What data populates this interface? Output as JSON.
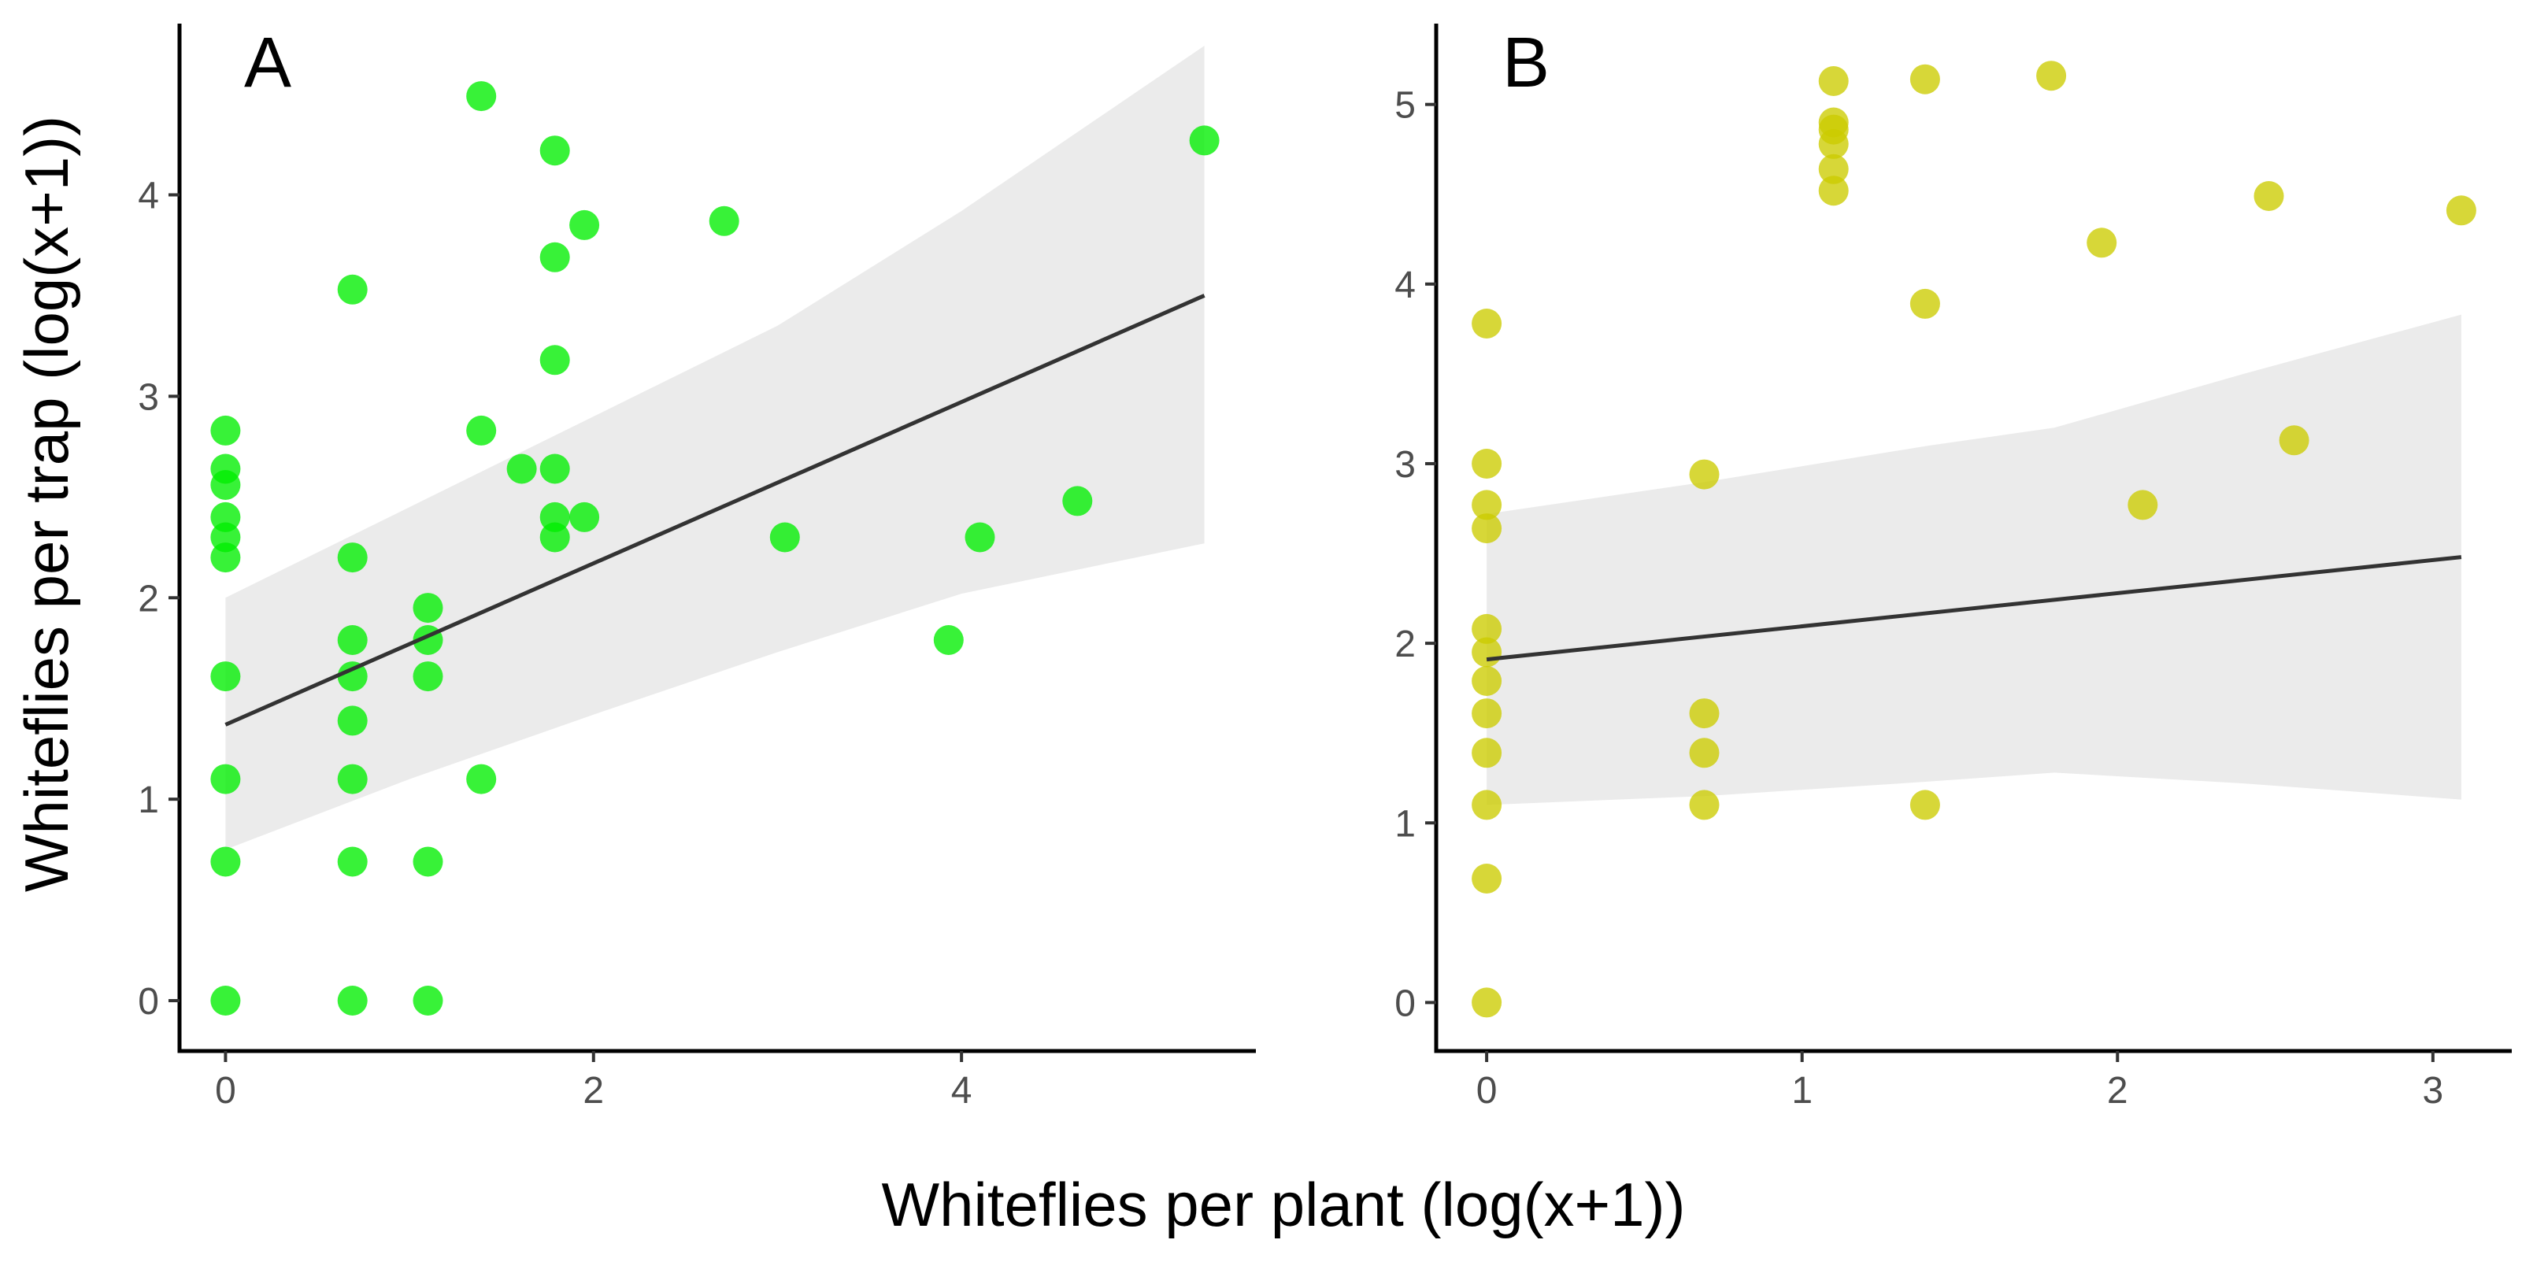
{
  "shared_labels": {
    "ylabel": "Whiteflies per trap (log(x+1))",
    "xlabel": "Whiteflies per plant (log(x+1))"
  },
  "chart_data": [
    {
      "type": "scatter",
      "panel_label": "A",
      "title": "",
      "xlabel": "Whiteflies per plant (log(x+1))",
      "ylabel": "Whiteflies per trap (log(x+1))",
      "xlim": [
        -0.25,
        5.6
      ],
      "ylim": [
        -0.25,
        4.85
      ],
      "x_ticks": [
        0,
        2,
        4
      ],
      "y_ticks": [
        0,
        1,
        2,
        3,
        4
      ],
      "point_color": "#00ee00",
      "grid": false,
      "series": [
        {
          "points": [
            [
              0,
              0
            ],
            [
              0,
              0.69
            ],
            [
              0,
              1.1
            ],
            [
              0,
              1.61
            ],
            [
              0,
              2.2
            ],
            [
              0,
              2.3
            ],
            [
              0,
              2.4
            ],
            [
              0,
              2.56
            ],
            [
              0,
              2.64
            ],
            [
              0,
              2.83
            ],
            [
              0.69,
              0
            ],
            [
              0.69,
              0.69
            ],
            [
              0.69,
              1.1
            ],
            [
              0.69,
              1.39
            ],
            [
              0.69,
              1.61
            ],
            [
              0.69,
              1.79
            ],
            [
              0.69,
              2.2
            ],
            [
              0.69,
              3.53
            ],
            [
              1.1,
              0
            ],
            [
              1.1,
              0.69
            ],
            [
              1.1,
              1.61
            ],
            [
              1.1,
              1.79
            ],
            [
              1.1,
              1.95
            ],
            [
              1.39,
              1.1
            ],
            [
              1.39,
              2.83
            ],
            [
              1.39,
              4.49
            ],
            [
              1.61,
              2.64
            ],
            [
              1.79,
              2.3
            ],
            [
              1.79,
              2.4
            ],
            [
              1.79,
              2.64
            ],
            [
              1.79,
              3.18
            ],
            [
              1.79,
              3.69
            ],
            [
              1.79,
              4.22
            ],
            [
              1.95,
              2.4
            ],
            [
              1.95,
              3.85
            ],
            [
              2.71,
              3.87
            ],
            [
              3.04,
              2.3
            ],
            [
              3.93,
              1.79
            ],
            [
              4.1,
              2.3
            ],
            [
              4.63,
              2.48
            ],
            [
              5.32,
              4.27
            ]
          ]
        }
      ],
      "fit_line": {
        "x": [
          0,
          5.32
        ],
        "y": [
          1.37,
          3.5
        ]
      },
      "confidence_band": {
        "x": [
          0,
          1,
          2,
          3,
          4,
          5.32
        ],
        "lower": [
          0.75,
          1.1,
          1.42,
          1.73,
          2.02,
          2.27
        ],
        "upper": [
          2.0,
          2.45,
          2.9,
          3.35,
          3.92,
          4.74
        ]
      }
    },
    {
      "type": "scatter",
      "panel_label": "B",
      "title": "",
      "xlabel": "Whiteflies per plant (log(x+1))",
      "ylabel": "Whiteflies per trap (log(x+1))",
      "xlim": [
        -0.16,
        3.25
      ],
      "ylim": [
        -0.27,
        5.45
      ],
      "x_ticks": [
        0,
        1,
        2,
        3
      ],
      "y_ticks": [
        0,
        1,
        2,
        3,
        4,
        5
      ],
      "point_color": "#cccc00",
      "grid": false,
      "series": [
        {
          "points": [
            [
              0,
              0
            ],
            [
              0,
              0.69
            ],
            [
              0,
              1.1
            ],
            [
              0,
              1.39
            ],
            [
              0,
              1.61
            ],
            [
              0,
              1.79
            ],
            [
              0,
              1.95
            ],
            [
              0,
              2.08
            ],
            [
              0,
              2.64
            ],
            [
              0,
              2.77
            ],
            [
              0,
              3.0
            ],
            [
              0,
              3.78
            ],
            [
              0.69,
              1.1
            ],
            [
              0.69,
              1.39
            ],
            [
              0.69,
              1.61
            ],
            [
              0.69,
              2.94
            ],
            [
              1.1,
              4.52
            ],
            [
              1.1,
              4.64
            ],
            [
              1.1,
              4.78
            ],
            [
              1.1,
              4.86
            ],
            [
              1.1,
              4.9
            ],
            [
              1.1,
              5.13
            ],
            [
              1.39,
              1.1
            ],
            [
              1.39,
              3.89
            ],
            [
              1.39,
              5.14
            ],
            [
              1.79,
              5.16
            ],
            [
              1.95,
              4.23
            ],
            [
              2.08,
              2.77
            ],
            [
              2.48,
              4.49
            ],
            [
              2.56,
              3.13
            ],
            [
              3.09,
              4.41
            ]
          ]
        }
      ],
      "fit_line": {
        "x": [
          0,
          3.09
        ],
        "y": [
          1.91,
          2.48
        ]
      },
      "confidence_band": {
        "x": [
          0,
          0.7,
          1.4,
          1.8,
          2.4,
          3.09
        ],
        "lower": [
          1.1,
          1.15,
          1.23,
          1.28,
          1.22,
          1.13
        ],
        "upper": [
          2.72,
          2.9,
          3.1,
          3.2,
          3.5,
          3.83
        ]
      }
    }
  ]
}
